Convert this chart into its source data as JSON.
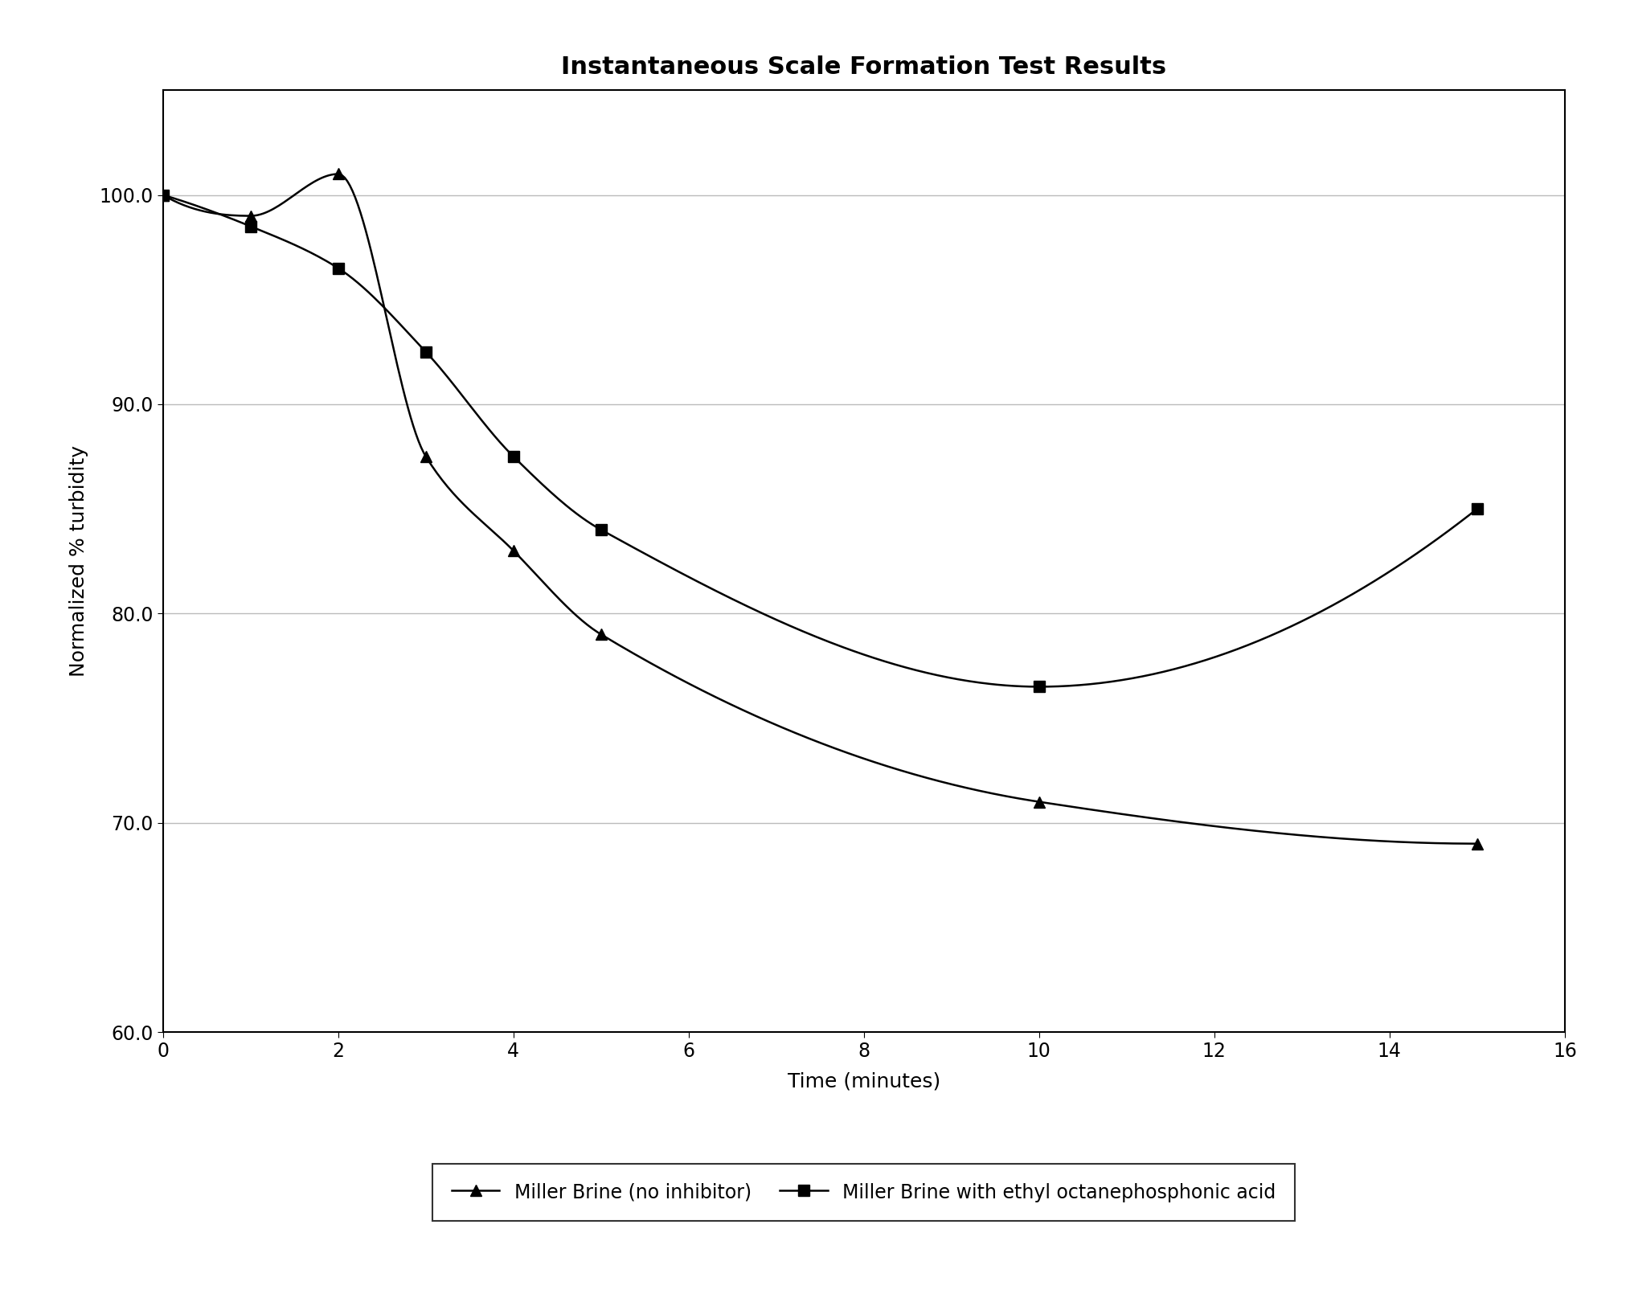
{
  "title": "Instantaneous Scale Formation Test Results",
  "xlabel": "Time (minutes)",
  "ylabel": "Normalized % turbidity",
  "series1_label": "Miller Brine (no inhibitor)",
  "series2_label": "Miller Brine with ethyl octanephosphonic acid",
  "series1_x": [
    0,
    1,
    2,
    3,
    4,
    5,
    10,
    15
  ],
  "series1_y": [
    100.0,
    99.0,
    101.0,
    87.5,
    83.0,
    79.0,
    71.0,
    69.0
  ],
  "series2_x": [
    0,
    1,
    2,
    3,
    4,
    5,
    10,
    15
  ],
  "series2_y": [
    100.0,
    98.5,
    96.5,
    92.5,
    87.5,
    84.0,
    76.5,
    85.0
  ],
  "xlim": [
    0,
    16
  ],
  "ylim": [
    60.0,
    105.0
  ],
  "yticks": [
    60.0,
    70.0,
    80.0,
    90.0,
    100.0
  ],
  "xticks": [
    0,
    2,
    4,
    6,
    8,
    10,
    12,
    14,
    16
  ],
  "line_color": "#000000",
  "marker1": "^",
  "marker2": "s",
  "markersize": 10,
  "linewidth": 1.8,
  "title_fontsize": 22,
  "label_fontsize": 18,
  "tick_fontsize": 17,
  "legend_fontsize": 17,
  "background_color": "#ffffff",
  "grid_color": "#bbbbbb",
  "fig_width": 20.28,
  "fig_height": 16.05,
  "dpi": 100
}
